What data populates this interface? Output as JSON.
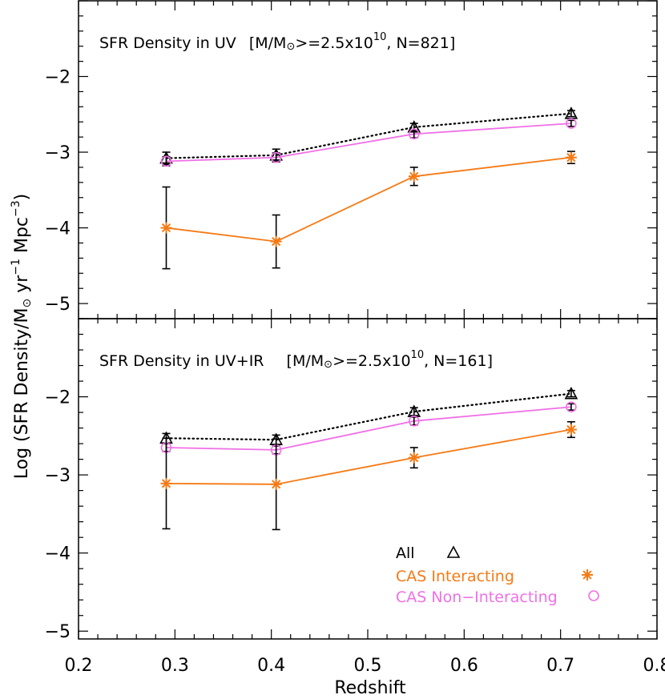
{
  "chart_data": [
    {
      "type": "line",
      "panel": "top",
      "title_parts": {
        "main": "SFR Density in UV",
        "bracket_open": "[M/M",
        "sun": "⊙",
        "ge": ">=2.5x10",
        "exp": "10",
        "n": ", N=821]"
      },
      "xlim": [
        0.2,
        0.8
      ],
      "ylim": [
        -5.2,
        -1.0
      ],
      "yticks": [
        -5,
        -4,
        -3,
        -2
      ],
      "ytick_labels": [
        "−5",
        "−4",
        "−3",
        "−2"
      ],
      "x": [
        0.291,
        0.405,
        0.548,
        0.711
      ],
      "series": [
        {
          "key": "all",
          "values": [
            -3.08,
            -3.04,
            -2.67,
            -2.49
          ],
          "err": [
            0.08,
            0.08,
            0.05,
            0.04
          ],
          "color": "#000000",
          "linestyle": "dotted",
          "marker": "triangle"
        },
        {
          "key": "non",
          "values": [
            -3.12,
            -3.07,
            -2.76,
            -2.62
          ],
          "err": [
            0.06,
            0.06,
            0.05,
            0.04
          ],
          "color": "#f070e6",
          "linestyle": "solid",
          "marker": "circle"
        },
        {
          "key": "int",
          "values": [
            -4.0,
            -4.18,
            -3.32,
            -3.07
          ],
          "err": [
            0.54,
            0.35,
            0.12,
            0.08
          ],
          "color": "#f57a15",
          "linestyle": "solid",
          "marker": "asterisk"
        }
      ]
    },
    {
      "type": "line",
      "panel": "bottom",
      "title_parts": {
        "main": "SFR Density in UV+IR",
        "bracket_open": "[M/M",
        "sun": "⊙",
        "ge": ">=2.5x10",
        "exp": "10",
        "n": ", N=161]"
      },
      "xlim": [
        0.2,
        0.8
      ],
      "ylim": [
        -5.1,
        -1.0
      ],
      "yticks": [
        -5,
        -4,
        -3,
        -2
      ],
      "ytick_labels": [
        "−5",
        "−4",
        "−3",
        "−2"
      ],
      "x": [
        0.291,
        0.405,
        0.548,
        0.711
      ],
      "series": [
        {
          "key": "all",
          "values": [
            -2.53,
            -2.55,
            -2.19,
            -1.96
          ],
          "err": [
            0.06,
            0.06,
            0.05,
            0.04
          ],
          "color": "#000000",
          "linestyle": "dotted",
          "marker": "triangle"
        },
        {
          "key": "non",
          "values": [
            -2.65,
            -2.68,
            -2.31,
            -2.13
          ],
          "err": [
            0.05,
            0.05,
            0.05,
            0.04
          ],
          "color": "#f070e6",
          "linestyle": "solid",
          "marker": "circle"
        },
        {
          "key": "int",
          "values": [
            -3.11,
            -3.12,
            -2.78,
            -2.42
          ],
          "err": [
            0.58,
            0.58,
            0.13,
            0.1
          ],
          "color": "#f57a15",
          "linestyle": "solid",
          "marker": "asterisk"
        }
      ]
    }
  ],
  "axes": {
    "xticks": [
      0.2,
      0.3,
      0.4,
      0.5,
      0.6,
      0.7,
      0.8
    ],
    "xtick_labels": [
      "0.2",
      "0.3",
      "0.4",
      "0.5",
      "0.6",
      "0.7",
      "0.8"
    ],
    "xlabel": "Redshift",
    "ylabel_parts": {
      "a": "Log (SFR Density/M",
      "sun": "⊙",
      "b": " yr",
      "sup1": "−1",
      "c": " Mpc",
      "sup2": "−3",
      "d": ")"
    }
  },
  "legend": {
    "items": [
      {
        "key": "all",
        "label": "All",
        "color": "#000000",
        "marker": "triangle"
      },
      {
        "key": "int",
        "label": "CAS Interacting",
        "color": "#f57a15",
        "marker": "asterisk"
      },
      {
        "key": "non",
        "label": "CAS Non−Interacting",
        "color": "#f070e6",
        "marker": "circle"
      }
    ]
  }
}
